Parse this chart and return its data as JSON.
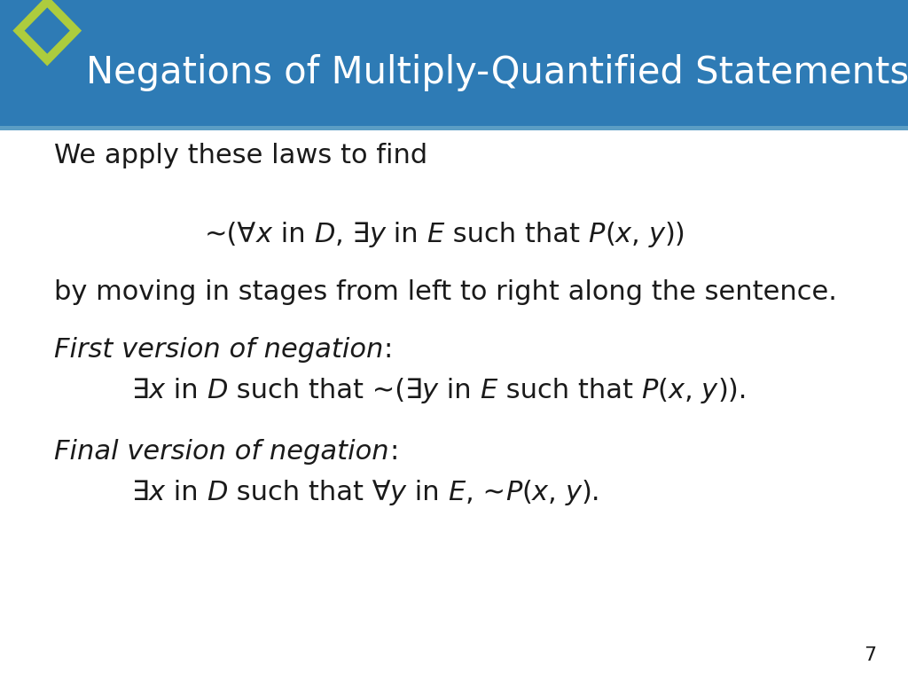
{
  "title": "Negations of Multiply-Quantified Statements",
  "title_bg_color": "#2E7BB5",
  "title_text_color": "#FFFFFF",
  "diamond_outer_color": "#ADCC3E",
  "diamond_inner_color": "#2E7BB5",
  "bg_color": "#FFFFFF",
  "slide_number": "7",
  "body_text_color": "#1A1A1A",
  "body_font_size": 22,
  "title_font_size": 30
}
